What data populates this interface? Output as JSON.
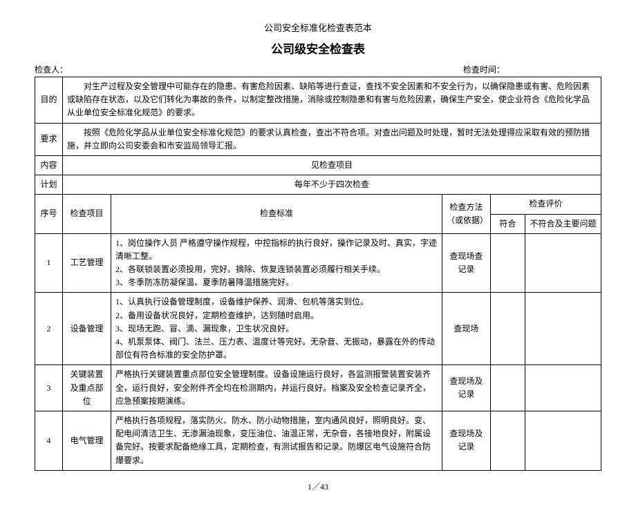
{
  "pretitle": "公司安全标准化检查表范本",
  "title": "公司级安全检查表",
  "inspector_label": "检查人：",
  "time_label": "检查时间：",
  "rows_meta": {
    "purpose_label": "目的",
    "purpose_text": "对生产过程及安全管理中可能存在的隐患、有害危险因素、缺陷等进行查证，查找不安全因素和不安全行为，以确保隐患或有害、危险因素或缺陷存在状态，以及它们转化为事故的条件，以制定整改措施，消除或控制隐患和有害与危险因素，确保生产安全，使企业符合《危险化学品从业单位安全标准化规范》的要求。",
    "req_label": "要求",
    "req_text": "按照《危险化学品从业单位安全标准化规范》的要求认真检查，查出不符合项。对查出问题及时处理，暂时无法处理得应采取有效的预防措施，并立即向公司安委会和市安监局领导汇报。",
    "content_label": "内容",
    "content_text": "见检查项目",
    "plan_label": "计划",
    "plan_text": "每年不少于四次检查"
  },
  "headers": {
    "no": "序号",
    "item": "检查项目",
    "std": "检查标准",
    "method": "检查方法（或依据）",
    "eval": "检查评价",
    "eval1": "符合",
    "eval2": "不符合及主要问题"
  },
  "items": [
    {
      "no": "1",
      "item": "工艺管理",
      "std": "1、岗位操作人员 严格遵守操作规程，中控指标的执行良好，操作记录及时、真实，字迹清晰工整。\n2、各联锁装置必须投用，完好。摘除、恢复连锁装置必须履行相关手续。\n3、冬季防冻防凝保温、夏季防暑降温措施完好。",
      "method": "查现场查记录"
    },
    {
      "no": "2",
      "item": "设备管理",
      "std": "1、认真执行设备管理制度，设备维护保养、润滑、包机等落实到位。\n2、备用设备状况良好，定期检查维护，达到随时启用。\n3、现场无跑、冒、滴、漏现象，卫生状况良好。\n4、机泵泵体、阀门、法兰、压力表、温度计等完好。无杂音、无振动，暴露在外的传动部位有符合标准的安全防护罩。",
      "method": "查现场"
    },
    {
      "no": "3",
      "item": "关键装置及重点部位",
      "std": "严格执行关键装置重点部位安全管理制度。设备设施运行良好，各监测报警装置安装齐全，运行良好，安全附件齐全均在检测期内，并运行良好。档案及安全检查记录齐全，应急预案按期演练。",
      "method": "查现场及记录"
    },
    {
      "no": "4",
      "item": "电气管理",
      "std": "严格执行各项规程，落实防火、防水、防小动物措施，室内通风良好，照明良好。变、配电间清洁卫生、无渗漏油现象，变压油位、油温正常，无杂音，各接地良好，附属设备完好。按要求配备绝缘工具，定期检查，有测试报告和记录。防爆区电气设施符合防爆要求。",
      "method": "查现场及记录"
    }
  ],
  "footer": "1／43"
}
